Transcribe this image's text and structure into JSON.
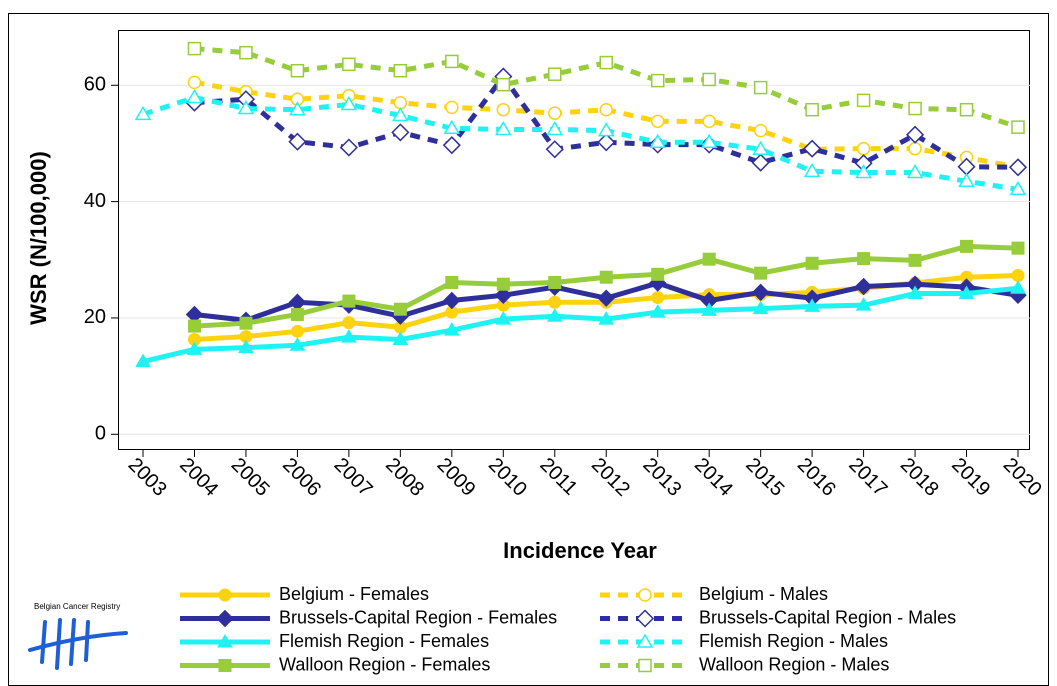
{
  "chart_data": {
    "type": "line",
    "categories": [
      "2003",
      "2004",
      "2005",
      "2006",
      "2007",
      "2008",
      "2009",
      "2010",
      "2011",
      "2012",
      "2013",
      "2014",
      "2015",
      "2016",
      "2017",
      "2018",
      "2019",
      "2020"
    ],
    "x_label": "Incidence Year",
    "y_label": "WSR (N/100,000)",
    "ylim": [
      -2.7,
      69.5
    ],
    "yticks": [
      0,
      20,
      40,
      60
    ],
    "grid": true,
    "series": [
      {
        "name": "Belgium - Females",
        "color": "#fdd20f",
        "dash": false,
        "marker": "circle",
        "values": [
          null,
          16.3,
          16.8,
          17.7,
          19.2,
          18.4,
          21,
          22.2,
          22.7,
          22.7,
          23.5,
          24,
          24,
          24.4,
          25.1,
          26,
          27,
          27.3
        ]
      },
      {
        "name": "Brussels-Capital Region - Females",
        "color": "#2f2f9c",
        "dash": false,
        "marker": "diamond",
        "values": [
          null,
          20.6,
          19.6,
          22.7,
          22.2,
          20.3,
          23,
          23.9,
          25.3,
          23.4,
          26,
          23,
          24.4,
          23.4,
          25.4,
          25.8,
          25.3,
          23.9
        ]
      },
      {
        "name": "Flemish Region - Females",
        "color": "#1ff2f2",
        "dash": false,
        "marker": "triangle",
        "values": [
          12.5,
          14.6,
          14.9,
          15.3,
          16.7,
          16.3,
          17.9,
          19.8,
          20.3,
          19.8,
          21,
          21.3,
          21.6,
          22,
          22.2,
          24.2,
          24.2,
          25.1
        ]
      },
      {
        "name": "Walloon Region - Females",
        "color": "#97cc3a",
        "dash": false,
        "marker": "square",
        "values": [
          null,
          18.6,
          19.1,
          20.6,
          22.9,
          21.5,
          26.1,
          25.8,
          26.1,
          27,
          27.5,
          30.1,
          27.7,
          29.4,
          30.2,
          29.9,
          32.3,
          32
        ]
      },
      {
        "name": "Belgium - Males",
        "color": "#fdd20f",
        "dash": true,
        "marker": "circle",
        "values": [
          null,
          60.5,
          58.9,
          57.6,
          58.2,
          57,
          56.2,
          55.8,
          55.2,
          55.8,
          53.8,
          53.8,
          52.2,
          49,
          49.1,
          49.1,
          47.6,
          45.9
        ]
      },
      {
        "name": "Brussels-Capital Region - Males",
        "color": "#2f2f9c",
        "dash": true,
        "marker": "diamond",
        "values": [
          null,
          57,
          57.6,
          50.3,
          49.3,
          51.9,
          49.7,
          61.5,
          49,
          50.2,
          49.8,
          49.8,
          46.7,
          49.1,
          46.6,
          51.5,
          46,
          45.9
        ]
      },
      {
        "name": "Flemish Region - Males",
        "color": "#1ff2f2",
        "dash": true,
        "marker": "triangle",
        "values": [
          55,
          57.9,
          56,
          55.8,
          56.7,
          54.8,
          52.6,
          52.4,
          52.4,
          52.2,
          50.2,
          50.2,
          49,
          45.2,
          45,
          45,
          43.5,
          42.1
        ]
      },
      {
        "name": "Walloon Region - Males",
        "color": "#97cc3a",
        "dash": true,
        "marker": "square",
        "values": [
          null,
          66.3,
          65.6,
          62.5,
          63.6,
          62.5,
          64.1,
          60.1,
          61.9,
          63.9,
          60.8,
          61,
          59.6,
          55.8,
          57.4,
          56,
          55.8,
          52.8
        ]
      }
    ]
  },
  "logo": {
    "text": "Belgian Cancer Registry"
  }
}
